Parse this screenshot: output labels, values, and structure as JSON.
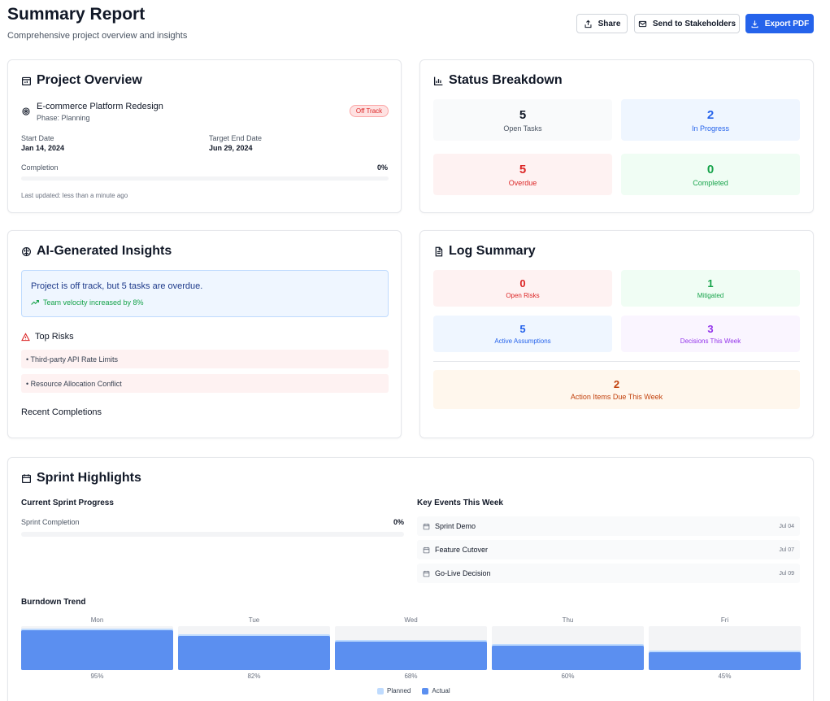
{
  "header": {
    "title": "Summary Report",
    "subtitle": "Comprehensive project overview and insights",
    "share_label": "Share",
    "send_label": "Send to Stakeholders",
    "export_label": "Export PDF"
  },
  "project_overview": {
    "title": "Project Overview",
    "project_name": "E-commerce Platform Redesign",
    "phase": "Phase: Planning",
    "status_badge": "Off Track",
    "start_date_label": "Start Date",
    "start_date": "Jan 14, 2024",
    "end_date_label": "Target End Date",
    "end_date": "Jun 29, 2024",
    "completion_label": "Completion",
    "completion_value": "0%",
    "completion_fraction": 0,
    "last_updated": "Last updated: less than a minute ago"
  },
  "status_breakdown": {
    "title": "Status Breakdown",
    "tiles": [
      {
        "value": "5",
        "label": "Open Tasks"
      },
      {
        "value": "2",
        "label": "In Progress"
      },
      {
        "value": "5",
        "label": "Overdue"
      },
      {
        "value": "0",
        "label": "Completed"
      }
    ]
  },
  "insights": {
    "title": "AI-Generated Insights",
    "summary": "Project is off track, but 5 tasks are overdue.",
    "velocity": "Team velocity increased by 8%",
    "risks_title": "Top Risks",
    "risks": [
      "• Third-party API Rate Limits",
      "• Resource Allocation Conflict"
    ],
    "recent_title": "Recent Completions"
  },
  "log_summary": {
    "title": "Log Summary",
    "tiles": [
      {
        "value": "0",
        "label": "Open Risks"
      },
      {
        "value": "1",
        "label": "Mitigated"
      },
      {
        "value": "5",
        "label": "Active Assumptions"
      },
      {
        "value": "3",
        "label": "Decisions This Week"
      }
    ],
    "actions": {
      "value": "2",
      "label": "Action Items Due This Week"
    }
  },
  "sprint": {
    "title": "Sprint Highlights",
    "progress_title": "Current Sprint Progress",
    "completion_label": "Sprint Completion",
    "completion_value": "0%",
    "completion_fraction": 0,
    "events_title": "Key Events This Week",
    "events": [
      {
        "name": "Sprint Demo",
        "date": "Jul 04"
      },
      {
        "name": "Feature Cutover",
        "date": "Jul 07"
      },
      {
        "name": "Go-Live Decision",
        "date": "Jul 09"
      }
    ],
    "burndown_title": "Burndown Trend",
    "legend_planned": "Planned",
    "legend_actual": "Actual"
  },
  "chart_data": {
    "type": "bar",
    "categories": [
      "Mon",
      "Tue",
      "Wed",
      "Thu",
      "Fri"
    ],
    "series": [
      {
        "name": "Planned",
        "values": [
          95,
          82,
          68,
          60,
          45
        ]
      },
      {
        "name": "Actual",
        "values": [
          95,
          82,
          68,
          60,
          45
        ]
      }
    ],
    "value_labels": [
      "95%",
      "82%",
      "68%",
      "60%",
      "45%"
    ],
    "ylim": [
      0,
      100
    ]
  },
  "colors": {
    "primary": "#2563eb",
    "danger": "#dc2626",
    "success": "#16a34a",
    "purple": "#9333ea",
    "orange": "#c2410c"
  }
}
